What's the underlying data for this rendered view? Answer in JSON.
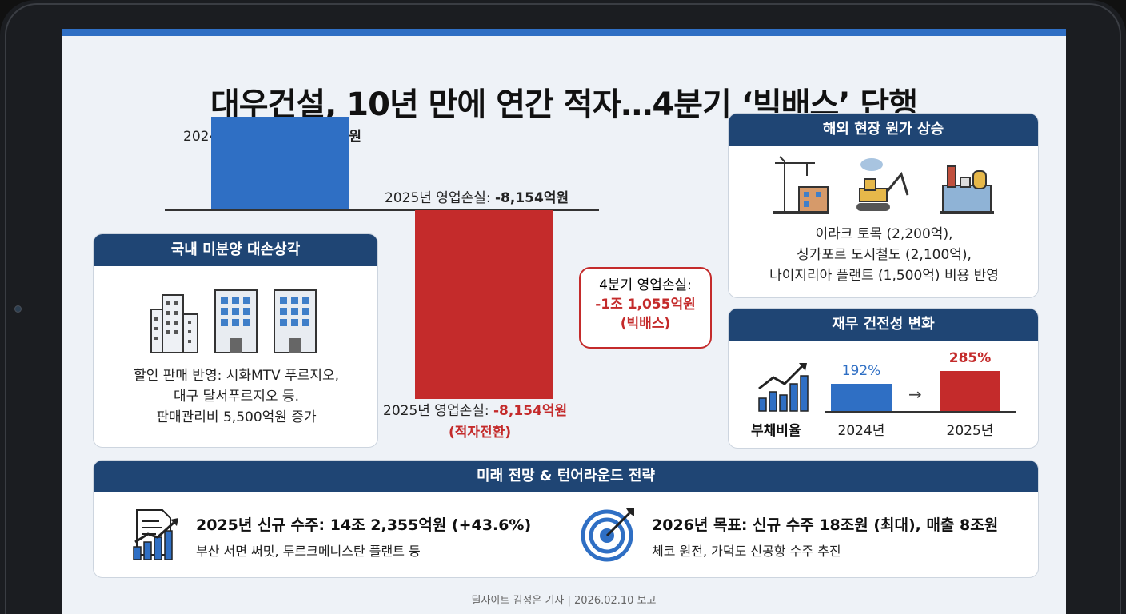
{
  "title": "대우건설, 10년 만에 연간 적자…4분기 ‘빅배스’ 단행",
  "colors": {
    "blue": "#2f6fc4",
    "red": "#c42b2b",
    "navy": "#1f4574"
  },
  "chart_data": {
    "type": "bar",
    "categories": [
      "2024년 영업이익",
      "2025년 영업손실"
    ],
    "values": [
      4031,
      -8154
    ],
    "unit": "억원",
    "labels": {
      "top_2024_prefix": "2024년 영업이익: ",
      "top_2024_value": "4,031억원",
      "top_2025_prefix": "2025년 영업손실: ",
      "top_2025_value": "-8,154억원",
      "bottom_2025_prefix": "2025년 영업손실: ",
      "bottom_2025_value": "-8,154억원",
      "bottom_2025_note": "(적자전환)"
    }
  },
  "callout": {
    "line1": "4분기 영업손실:",
    "line2": "-1조 1,055억원",
    "line3": "(빅배스)"
  },
  "domestic": {
    "header": "국내 미분양 대손상각",
    "line1": "할인 판매 반영: 시화MTV 푸르지오,",
    "line2": "대구 달서푸르지오 등.",
    "line3": "판매관리비 5,500억원 증가"
  },
  "overseas": {
    "header": "해외 현장 원가 상승",
    "line1": "이라크 토목 (2,200억),",
    "line2": "싱가포르 도시철도 (2,100억),",
    "line3": "나이지리아 플랜트 (1,500억) 비용 반영"
  },
  "finance": {
    "header": "재무 건전성 변화",
    "icon_label": "부채비율",
    "values": [
      192,
      285
    ],
    "value_labels": [
      "192%",
      "285%"
    ],
    "years": [
      "2024년",
      "2025년"
    ],
    "arrow": "→"
  },
  "future": {
    "header": "미래 전망 & 턴어라운드 전략",
    "left_title": "2025년 신규 수주: 14조 2,355억원 (+43.6%)",
    "left_sub": "부산 서면 써밋, 투르크메니스탄 플랜트 등",
    "right_title": "2026년 목표: 신규 수주 18조원 (최대), 매출 8조원",
    "right_sub": "체코 원전, 가덕도 신공항 수주 추진"
  },
  "footer": "딜사이트 김정은 기자 | 2026.02.10 보고"
}
